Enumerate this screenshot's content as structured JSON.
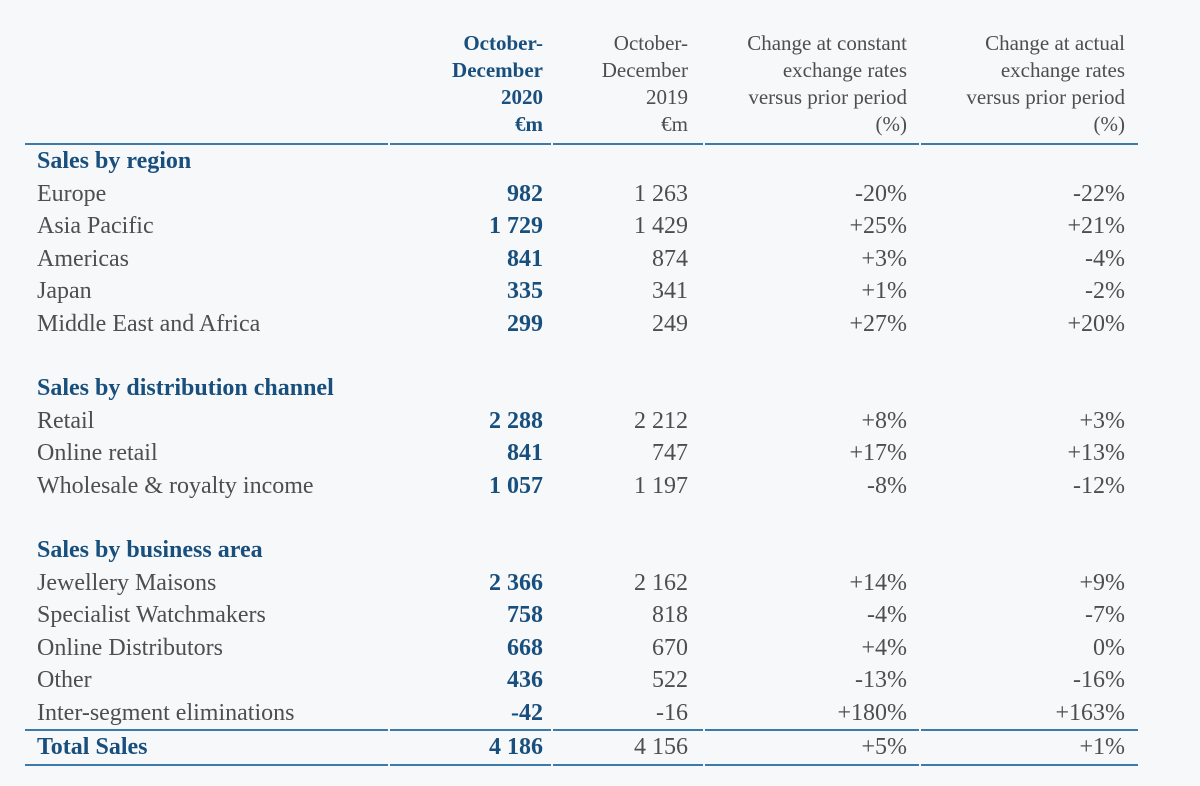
{
  "colors": {
    "accent_blue": "#184f7d",
    "rule_blue": "#3b7aa9",
    "text_gray": "#4e4e4e",
    "background": "#f7f8fa"
  },
  "table": {
    "header": {
      "col_label": {
        "lines": []
      },
      "col_2020": {
        "lines": [
          "October-",
          "December",
          "2020",
          "€m"
        ]
      },
      "col_2019": {
        "lines": [
          "October-",
          "December",
          "2019",
          "€m"
        ]
      },
      "col_const": {
        "lines": [
          "Change at constant",
          "exchange rates",
          "versus prior period",
          "(%)"
        ]
      },
      "col_actual": {
        "lines": [
          "Change at actual",
          "exchange rates",
          "versus prior period",
          "(%)"
        ]
      }
    },
    "sections": [
      {
        "title": "Sales by region",
        "rows": [
          {
            "label": "Europe",
            "v2020": "982",
            "v2019": "1 263",
            "constant": "-20%",
            "actual": "-22%"
          },
          {
            "label": "Asia Pacific",
            "v2020": "1 729",
            "v2019": "1 429",
            "constant": "+25%",
            "actual": "+21%"
          },
          {
            "label": "Americas",
            "v2020": "841",
            "v2019": "874",
            "constant": "+3%",
            "actual": "-4%"
          },
          {
            "label": "Japan",
            "v2020": "335",
            "v2019": "341",
            "constant": "+1%",
            "actual": "-2%"
          },
          {
            "label": "Middle East and Africa",
            "v2020": "299",
            "v2019": "249",
            "constant": "+27%",
            "actual": "+20%"
          }
        ]
      },
      {
        "title": "Sales by distribution channel",
        "rows": [
          {
            "label": "Retail",
            "v2020": "2 288",
            "v2019": "2 212",
            "constant": "+8%",
            "actual": "+3%"
          },
          {
            "label": "Online retail",
            "v2020": "841",
            "v2019": "747",
            "constant": "+17%",
            "actual": "+13%"
          },
          {
            "label": "Wholesale & royalty income",
            "v2020": "1 057",
            "v2019": "1 197",
            "constant": "-8%",
            "actual": "-12%"
          }
        ]
      },
      {
        "title": "Sales by business area",
        "rows": [
          {
            "label": "Jewellery Maisons",
            "v2020": "2 366",
            "v2019": "2 162",
            "constant": "+14%",
            "actual": "+9%"
          },
          {
            "label": "Specialist Watchmakers",
            "v2020": "758",
            "v2019": "818",
            "constant": "-4%",
            "actual": "-7%"
          },
          {
            "label": "Online Distributors",
            "v2020": "668",
            "v2019": "670",
            "constant": "+4%",
            "actual": "0%"
          },
          {
            "label": "Other",
            "v2020": "436",
            "v2019": "522",
            "constant": "-13%",
            "actual": "-16%"
          },
          {
            "label": "Inter-segment eliminations",
            "v2020": "-42",
            "v2019": "-16",
            "constant": "+180%",
            "actual": "+163%"
          }
        ]
      }
    ],
    "total": {
      "label": "Total Sales",
      "v2020": "4 186",
      "v2019": "4 156",
      "constant": "+5%",
      "actual": "+1%"
    }
  }
}
